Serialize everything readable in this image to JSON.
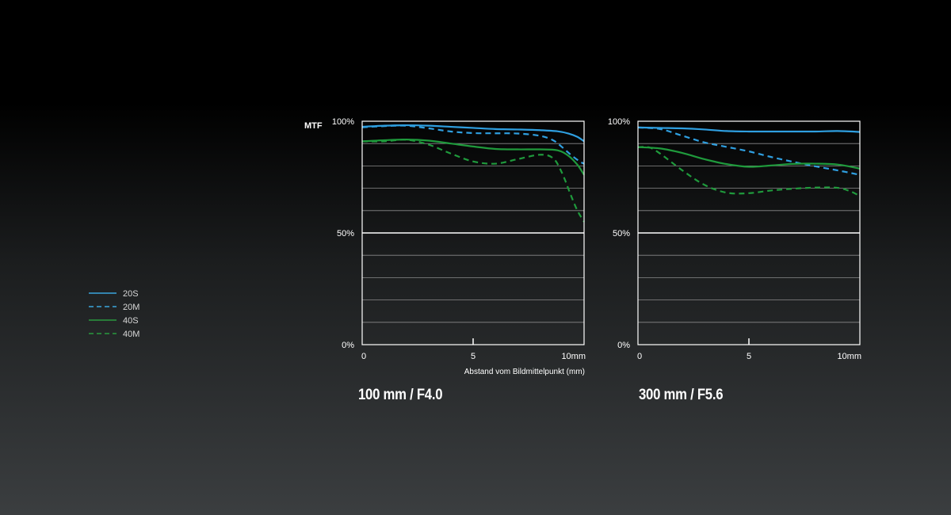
{
  "legend": [
    {
      "label": "20S",
      "color": "#3aa6dd",
      "dashed": false
    },
    {
      "label": "20M",
      "color": "#3aa6dd",
      "dashed": true
    },
    {
      "label": "40S",
      "color": "#2a9a3e",
      "dashed": false
    },
    {
      "label": "40M",
      "color": "#2a9a3e",
      "dashed": true
    }
  ],
  "colors": {
    "blue": "#2f9fe0",
    "green": "#1f9a3c"
  },
  "mtf_label": "MTF",
  "xlabel": "Abstand vom Bildmittelpunkt (mm)",
  "chart_data": [
    {
      "type": "line",
      "title": "100 mm / F4.0",
      "ylabel": "MTF",
      "xlabel": "Abstand vom Bildmittelpunkt (mm)",
      "xlim": [
        0,
        10
      ],
      "ylim": [
        0,
        100
      ],
      "x_ticks": [
        {
          "value": 0,
          "label": "0"
        },
        {
          "value": 5,
          "label": "5"
        },
        {
          "value": 10,
          "label": "10mm"
        }
      ],
      "y_ticks": [
        {
          "value": 0,
          "label": "0%"
        },
        {
          "value": 50,
          "label": "50%"
        },
        {
          "value": 100,
          "label": "100%"
        }
      ],
      "grid_y": [
        10,
        20,
        30,
        40,
        50,
        60,
        70,
        80,
        90
      ],
      "series": [
        {
          "name": "20S",
          "x": [
            0,
            1,
            2,
            3,
            4,
            5,
            6,
            7,
            8,
            8.8,
            9.3,
            9.7,
            10
          ],
          "y": [
            97.5,
            98,
            98.2,
            98,
            97.5,
            97,
            96.5,
            96.3,
            96,
            95.5,
            94.5,
            93,
            91
          ]
        },
        {
          "name": "20M",
          "x": [
            0,
            1,
            2,
            3,
            4,
            5,
            6,
            7,
            8,
            8.6,
            9.0,
            9.4,
            9.8,
            10
          ],
          "y": [
            97.3,
            97.8,
            98,
            96.8,
            95.4,
            94.7,
            94.6,
            94.5,
            93.5,
            91.5,
            88.5,
            85,
            82,
            81
          ]
        },
        {
          "name": "40S",
          "x": [
            0,
            1,
            2,
            3,
            4,
            5,
            6,
            7,
            8,
            8.8,
            9.3,
            9.7,
            10
          ],
          "y": [
            91,
            91.5,
            91.8,
            91.3,
            90,
            88.7,
            87.6,
            87.4,
            87.4,
            87,
            84.5,
            80.5,
            76
          ]
        },
        {
          "name": "40M",
          "x": [
            0,
            1,
            2,
            3,
            4,
            5,
            6,
            7,
            8,
            8.6,
            9.0,
            9.4,
            9.7,
            10
          ],
          "y": [
            91,
            91,
            91.7,
            89.5,
            85.5,
            82,
            81,
            83,
            85,
            83.5,
            77,
            67,
            60,
            55
          ]
        }
      ]
    },
    {
      "type": "line",
      "title": "300 mm / F5.6",
      "xlim": [
        0,
        10
      ],
      "ylim": [
        0,
        100
      ],
      "x_ticks": [
        {
          "value": 0,
          "label": "0"
        },
        {
          "value": 5,
          "label": "5"
        },
        {
          "value": 10,
          "label": "10mm"
        }
      ],
      "y_ticks": [
        {
          "value": 0,
          "label": "0%"
        },
        {
          "value": 50,
          "label": "50%"
        },
        {
          "value": 100,
          "label": "100%"
        }
      ],
      "grid_y": [
        10,
        20,
        30,
        40,
        50,
        60,
        70,
        80,
        90
      ],
      "series": [
        {
          "name": "20S",
          "x": [
            0,
            1,
            2,
            3,
            4,
            5,
            6,
            7,
            8,
            9,
            10
          ],
          "y": [
            97.2,
            97,
            96.8,
            96.3,
            95.6,
            95.4,
            95.4,
            95.4,
            95.4,
            95.6,
            95.2
          ]
        },
        {
          "name": "20M",
          "x": [
            0,
            1,
            2,
            3,
            4,
            5,
            6,
            7,
            8,
            9,
            10
          ],
          "y": [
            97.2,
            96.5,
            93.5,
            90.5,
            88.5,
            86.5,
            84,
            81.8,
            79.8,
            78,
            76
          ]
        },
        {
          "name": "40S",
          "x": [
            0,
            1,
            2,
            3,
            4,
            5,
            6,
            7,
            8,
            9,
            10
          ],
          "y": [
            88.4,
            87.8,
            85.8,
            83,
            80.8,
            79.6,
            80.2,
            80.9,
            81,
            80.6,
            78.8
          ]
        },
        {
          "name": "40M",
          "x": [
            0,
            0.5,
            1,
            2,
            3,
            4,
            5,
            6,
            7,
            8,
            9,
            9.6,
            10
          ],
          "y": [
            88.4,
            88.3,
            85.5,
            78,
            71.5,
            68,
            67.8,
            69,
            69.8,
            70.3,
            70.2,
            68.5,
            66.5
          ]
        }
      ]
    }
  ]
}
